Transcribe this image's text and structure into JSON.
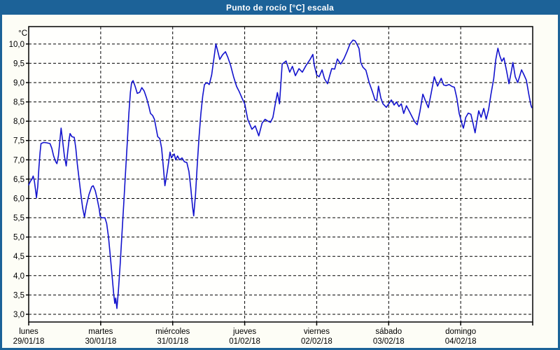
{
  "colors": {
    "frame": "#1c6298",
    "title_text": "#ffffff",
    "panel_bg": "#fdfdf6",
    "plot_bg": "#fffffd",
    "axis": "#000000",
    "grid": "#000000",
    "tick_text": "#000000"
  },
  "chart_data": {
    "type": "line",
    "title": "Punto de rocío [°C] escala",
    "ylabel": "°C",
    "xlabel": "",
    "legend": "none",
    "grid": "dashed",
    "ylim": [
      2.8,
      10.45
    ],
    "xlim_hours": [
      0,
      168
    ],
    "yticks": [
      {
        "value": 10.0,
        "label": "10,0"
      },
      {
        "value": 9.5,
        "label": "9,5"
      },
      {
        "value": 9.0,
        "label": "9,0"
      },
      {
        "value": 8.5,
        "label": "8,5"
      },
      {
        "value": 8.0,
        "label": "8,0"
      },
      {
        "value": 7.5,
        "label": "7,5"
      },
      {
        "value": 7.0,
        "label": "7,0"
      },
      {
        "value": 6.5,
        "label": "6,5"
      },
      {
        "value": 6.0,
        "label": "6,0"
      },
      {
        "value": 5.5,
        "label": "5,5"
      },
      {
        "value": 5.0,
        "label": "5,0"
      },
      {
        "value": 4.5,
        "label": "4,5"
      },
      {
        "value": 4.0,
        "label": "4,0"
      },
      {
        "value": 3.5,
        "label": "3,5"
      },
      {
        "value": 3.0,
        "label": "3,0"
      }
    ],
    "xticks_days": [
      {
        "day": "lunes",
        "date": "29/01/18"
      },
      {
        "day": "martes",
        "date": "30/01/18"
      },
      {
        "day": "miércoles",
        "date": "31/01/18"
      },
      {
        "day": "jueves",
        "date": "01/02/18"
      },
      {
        "day": "viernes",
        "date": "02/02/18"
      },
      {
        "day": "sábado",
        "date": "03/02/18"
      },
      {
        "day": "domingo",
        "date": "04/02/18"
      }
    ],
    "series": [
      {
        "name": "Punto de rocío",
        "color": "#1212cd",
        "points": [
          [
            0,
            6.35
          ],
          [
            0.6,
            6.45
          ],
          [
            1.1,
            6.5
          ],
          [
            1.5,
            6.58
          ],
          [
            1.9,
            6.45
          ],
          [
            2.3,
            6.2
          ],
          [
            2.6,
            6.02
          ],
          [
            3,
            6.3
          ],
          [
            3.4,
            6.8
          ],
          [
            3.8,
            7.2
          ],
          [
            4.1,
            7.42
          ],
          [
            5,
            7.45
          ],
          [
            6,
            7.44
          ],
          [
            7.1,
            7.42
          ],
          [
            7.7,
            7.3
          ],
          [
            8.3,
            7.1
          ],
          [
            9,
            6.95
          ],
          [
            9.4,
            6.9
          ],
          [
            9.9,
            7.1
          ],
          [
            10.4,
            7.5
          ],
          [
            10.8,
            7.82
          ],
          [
            11.3,
            7.5
          ],
          [
            11.9,
            7.1
          ],
          [
            12.5,
            6.84
          ],
          [
            13,
            7.2
          ],
          [
            13.5,
            7.55
          ],
          [
            13.8,
            7.68
          ],
          [
            14.4,
            7.6
          ],
          [
            15.2,
            7.58
          ],
          [
            15.7,
            7.3
          ],
          [
            16.2,
            6.9
          ],
          [
            16.8,
            6.5
          ],
          [
            17.4,
            6.1
          ],
          [
            18,
            5.75
          ],
          [
            18.6,
            5.52
          ],
          [
            19.2,
            5.8
          ],
          [
            20.1,
            6.1
          ],
          [
            21,
            6.3
          ],
          [
            21.5,
            6.33
          ],
          [
            22.2,
            6.2
          ],
          [
            22.8,
            6.0
          ],
          [
            23.5,
            5.73
          ],
          [
            23.8,
            5.55
          ],
          [
            24.2,
            5.5
          ],
          [
            25.4,
            5.5
          ],
          [
            26,
            5.35
          ],
          [
            26.6,
            5.0
          ],
          [
            27.2,
            4.5
          ],
          [
            27.8,
            4.0
          ],
          [
            28.3,
            3.55
          ],
          [
            28.7,
            3.28
          ],
          [
            29,
            3.42
          ],
          [
            29.4,
            3.15
          ],
          [
            29.9,
            3.6
          ],
          [
            30.5,
            4.3
          ],
          [
            31.1,
            5.1
          ],
          [
            31.7,
            5.9
          ],
          [
            32.3,
            6.7
          ],
          [
            32.9,
            7.5
          ],
          [
            33.4,
            8.2
          ],
          [
            33.9,
            8.75
          ],
          [
            34.3,
            9.0
          ],
          [
            34.8,
            9.05
          ],
          [
            35.5,
            8.9
          ],
          [
            36.2,
            8.72
          ],
          [
            37,
            8.75
          ],
          [
            37.7,
            8.87
          ],
          [
            38.5,
            8.78
          ],
          [
            39.3,
            8.6
          ],
          [
            40,
            8.4
          ],
          [
            40.6,
            8.2
          ],
          [
            41.3,
            8.15
          ],
          [
            41.9,
            8.05
          ],
          [
            42.4,
            7.85
          ],
          [
            43,
            7.6
          ],
          [
            43.7,
            7.55
          ],
          [
            44.3,
            7.3
          ],
          [
            44.9,
            6.8
          ],
          [
            45.4,
            6.33
          ],
          [
            46.2,
            6.7
          ],
          [
            47.1,
            7.2
          ],
          [
            47.6,
            7.05
          ],
          [
            48,
            7.1
          ],
          [
            48.5,
            7.15
          ],
          [
            49,
            7.0
          ],
          [
            49.6,
            7.1
          ],
          [
            50.3,
            7.0
          ],
          [
            51.1,
            7.05
          ],
          [
            51.9,
            6.95
          ],
          [
            52.7,
            6.93
          ],
          [
            53.4,
            6.7
          ],
          [
            54,
            6.3
          ],
          [
            54.6,
            5.8
          ],
          [
            55,
            5.55
          ],
          [
            55.6,
            6.1
          ],
          [
            56.2,
            6.9
          ],
          [
            56.8,
            7.6
          ],
          [
            57.4,
            8.2
          ],
          [
            58,
            8.65
          ],
          [
            58.6,
            8.95
          ],
          [
            59.4,
            9.0
          ],
          [
            60.2,
            8.95
          ],
          [
            61,
            9.2
          ],
          [
            61.7,
            9.6
          ],
          [
            62.4,
            10.0
          ],
          [
            63,
            9.82
          ],
          [
            63.7,
            9.6
          ],
          [
            64.6,
            9.72
          ],
          [
            65.6,
            9.8
          ],
          [
            66.4,
            9.65
          ],
          [
            67.3,
            9.45
          ],
          [
            68.3,
            9.15
          ],
          [
            69.3,
            8.9
          ],
          [
            70.2,
            8.76
          ],
          [
            71.1,
            8.6
          ],
          [
            72,
            8.45
          ],
          [
            73,
            8.05
          ],
          [
            74.4,
            7.79
          ],
          [
            75.5,
            7.88
          ],
          [
            76.7,
            7.62
          ],
          [
            77.8,
            7.95
          ],
          [
            78.8,
            8.05
          ],
          [
            79.8,
            8.0
          ],
          [
            80.6,
            7.97
          ],
          [
            81.4,
            8.1
          ],
          [
            82.2,
            8.45
          ],
          [
            82.9,
            8.74
          ],
          [
            83.6,
            8.45
          ],
          [
            84.5,
            9.48
          ],
          [
            85.8,
            9.56
          ],
          [
            87,
            9.27
          ],
          [
            87.9,
            9.42
          ],
          [
            88.9,
            9.18
          ],
          [
            90.1,
            9.36
          ],
          [
            91.2,
            9.27
          ],
          [
            92.5,
            9.45
          ],
          [
            93.8,
            9.6
          ],
          [
            94.7,
            9.73
          ],
          [
            95.2,
            9.45
          ],
          [
            96,
            9.2
          ],
          [
            96.8,
            9.15
          ],
          [
            97.8,
            9.33
          ],
          [
            98.6,
            9.1
          ],
          [
            99.6,
            8.97
          ],
          [
            100.4,
            9.2
          ],
          [
            101,
            9.36
          ],
          [
            102,
            9.35
          ],
          [
            102.9,
            9.61
          ],
          [
            104,
            9.48
          ],
          [
            105.1,
            9.62
          ],
          [
            106.1,
            9.8
          ],
          [
            107.1,
            10.0
          ],
          [
            108.1,
            10.1
          ],
          [
            108.8,
            10.08
          ],
          [
            109.5,
            9.98
          ],
          [
            110.1,
            9.88
          ],
          [
            110.7,
            9.52
          ],
          [
            111.4,
            9.4
          ],
          [
            112.4,
            9.32
          ],
          [
            113.5,
            9.0
          ],
          [
            114.6,
            8.76
          ],
          [
            115.4,
            8.56
          ],
          [
            116,
            8.53
          ],
          [
            116.6,
            8.91
          ],
          [
            117.4,
            8.6
          ],
          [
            118.1,
            8.45
          ],
          [
            119.2,
            8.36
          ],
          [
            120,
            8.45
          ],
          [
            120.9,
            8.55
          ],
          [
            121.8,
            8.42
          ],
          [
            122.6,
            8.5
          ],
          [
            123.4,
            8.38
          ],
          [
            124.2,
            8.45
          ],
          [
            125,
            8.2
          ],
          [
            125.9,
            8.4
          ],
          [
            126.9,
            8.25
          ],
          [
            127.9,
            8.1
          ],
          [
            128.7,
            7.98
          ],
          [
            129.5,
            7.91
          ],
          [
            130.4,
            8.25
          ],
          [
            131.4,
            8.7
          ],
          [
            132.4,
            8.5
          ],
          [
            133.2,
            8.35
          ],
          [
            134.1,
            8.7
          ],
          [
            135.2,
            9.15
          ],
          [
            136.3,
            8.91
          ],
          [
            137.5,
            9.11
          ],
          [
            138.3,
            8.94
          ],
          [
            139.1,
            8.92
          ],
          [
            140.1,
            8.95
          ],
          [
            141.1,
            8.9
          ],
          [
            141.9,
            8.88
          ],
          [
            142.7,
            8.6
          ],
          [
            143.5,
            8.2
          ],
          [
            144.5,
            7.91
          ],
          [
            144.9,
            7.82
          ],
          [
            145.7,
            8.1
          ],
          [
            146.5,
            8.21
          ],
          [
            147.4,
            8.18
          ],
          [
            148.1,
            7.95
          ],
          [
            148.8,
            7.7
          ],
          [
            149.4,
            8.0
          ],
          [
            150,
            8.27
          ],
          [
            150.8,
            8.1
          ],
          [
            151.7,
            8.33
          ],
          [
            152.5,
            8.05
          ],
          [
            153.3,
            8.3
          ],
          [
            154.1,
            8.7
          ],
          [
            155,
            9.1
          ],
          [
            155.7,
            9.6
          ],
          [
            156.4,
            9.89
          ],
          [
            157,
            9.7
          ],
          [
            157.7,
            9.55
          ],
          [
            158.4,
            9.64
          ],
          [
            159.3,
            9.3
          ],
          [
            160.1,
            8.97
          ],
          [
            160.9,
            9.3
          ],
          [
            161.4,
            9.52
          ],
          [
            162.2,
            9.15
          ],
          [
            163,
            9.0
          ],
          [
            163.7,
            9.18
          ],
          [
            164.3,
            9.33
          ],
          [
            165.1,
            9.2
          ],
          [
            165.9,
            9.06
          ],
          [
            166.7,
            8.7
          ],
          [
            167.4,
            8.42
          ],
          [
            167.7,
            8.35
          ]
        ]
      }
    ]
  }
}
